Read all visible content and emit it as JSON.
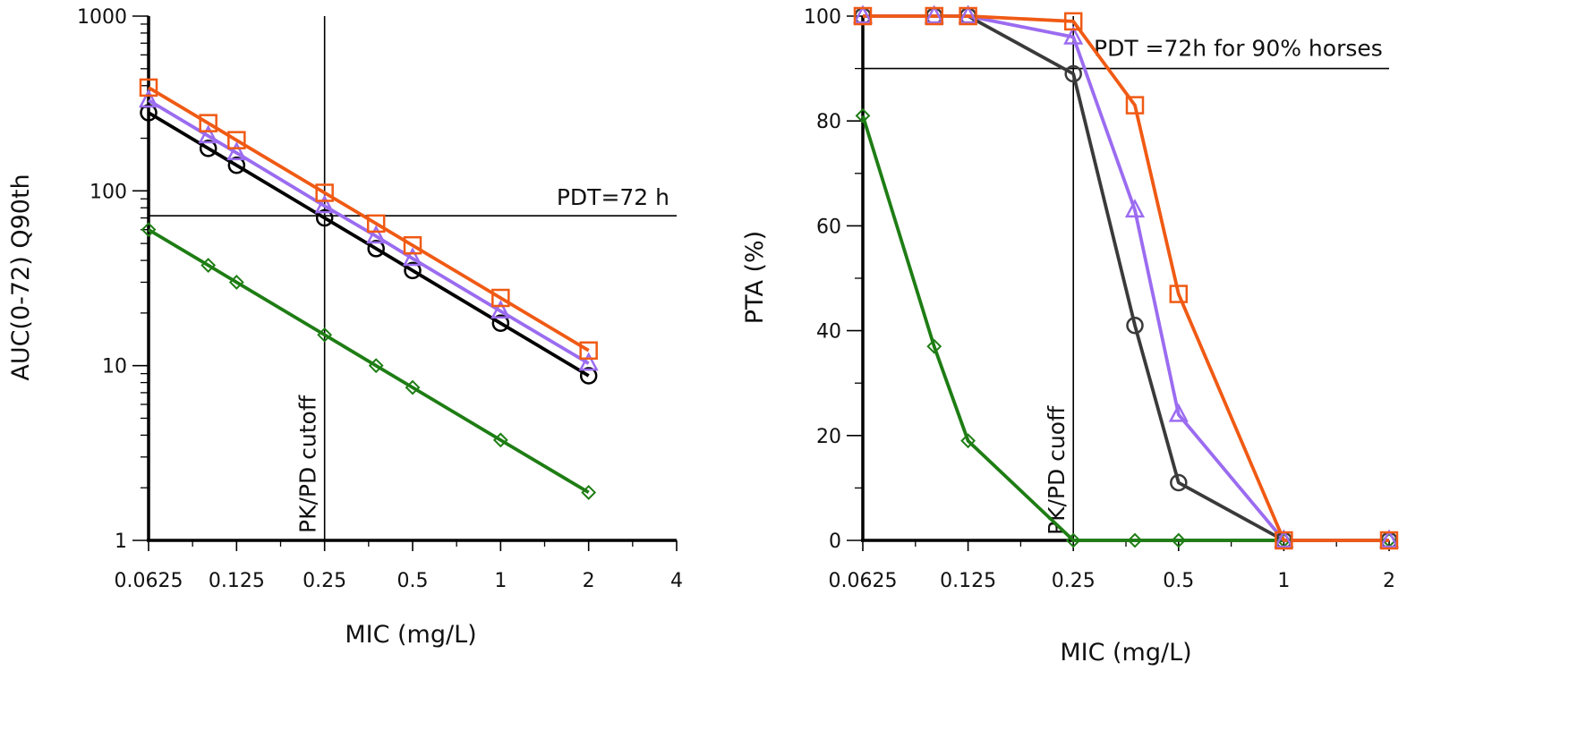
{
  "chart_data": [
    {
      "type": "line",
      "id": "auc",
      "xscale": "log2",
      "yscale": "log10",
      "xlabel": "MIC (mg/L)",
      "ylabel": "AUC(0-72) Q90th",
      "xlim": [
        0.0625,
        4
      ],
      "ylim": [
        1,
        1000
      ],
      "x_ticks": [
        {
          "value": 0.0625,
          "label": "0.0625"
        },
        {
          "value": 0.125,
          "label": "0.125"
        },
        {
          "value": 0.25,
          "label": "0.25"
        },
        {
          "value": 0.5,
          "label": "0.5"
        },
        {
          "value": 1,
          "label": "1"
        },
        {
          "value": 2,
          "label": "2"
        },
        {
          "value": 4,
          "label": "4"
        }
      ],
      "y_ticks": [
        {
          "value": 1,
          "label": "1"
        },
        {
          "value": 10,
          "label": "10"
        },
        {
          "value": 100,
          "label": "100"
        },
        {
          "value": 1000,
          "label": "1000"
        }
      ],
      "series": [
        {
          "name": "green-diamond",
          "color": "#1e7d14",
          "marker": "diamond",
          "x": [
            0.0625,
            0.1,
            0.125,
            0.25,
            0.375,
            0.5,
            1,
            2
          ],
          "y": [
            60,
            37.5,
            30,
            15,
            10,
            7.5,
            3.75,
            1.88
          ]
        },
        {
          "name": "black-circle",
          "color": "#000000",
          "marker": "circle",
          "x": [
            0.0625,
            0.1,
            0.125,
            0.25,
            0.375,
            0.5,
            1,
            2
          ],
          "y": [
            280,
            175,
            140,
            70,
            46.7,
            35,
            17.5,
            8.75
          ]
        },
        {
          "name": "purple-triangle",
          "color": "#9b6cf0",
          "marker": "triangle",
          "x": [
            0.0625,
            0.1,
            0.125,
            0.25,
            0.375,
            0.5,
            1,
            2
          ],
          "y": [
            330,
            206,
            165,
            82,
            55,
            41,
            20.5,
            10.3
          ]
        },
        {
          "name": "orange-square",
          "color": "#f05a14",
          "marker": "square",
          "x": [
            0.0625,
            0.1,
            0.125,
            0.25,
            0.375,
            0.5,
            1,
            2
          ],
          "y": [
            390,
            244,
            195,
            97.5,
            65,
            48.8,
            24.4,
            12.2
          ]
        }
      ],
      "hline": {
        "value": 72,
        "label": "PDT=72 h"
      },
      "vline": {
        "value": 0.25,
        "label": "PK/PD cutoff"
      }
    },
    {
      "type": "line",
      "id": "pta",
      "xscale": "log2",
      "yscale": "linear",
      "xlabel": "MIC (mg/L)",
      "ylabel": "PTA (%)",
      "xlim": [
        0.0625,
        2
      ],
      "ylim": [
        0,
        100
      ],
      "x_ticks": [
        {
          "value": 0.0625,
          "label": "0.0625"
        },
        {
          "value": 0.125,
          "label": "0.125"
        },
        {
          "value": 0.25,
          "label": "0.25"
        },
        {
          "value": 0.5,
          "label": "0.5"
        },
        {
          "value": 1,
          "label": "1"
        },
        {
          "value": 2,
          "label": "2"
        }
      ],
      "y_ticks": [
        {
          "value": 0,
          "label": "0"
        },
        {
          "value": 20,
          "label": "20"
        },
        {
          "value": 40,
          "label": "40"
        },
        {
          "value": 60,
          "label": "60"
        },
        {
          "value": 80,
          "label": "80"
        },
        {
          "value": 100,
          "label": "100"
        }
      ],
      "series": [
        {
          "name": "green-diamond",
          "color": "#1e7d14",
          "marker": "diamond",
          "x": [
            0.0625,
            0.1,
            0.125,
            0.25,
            0.375,
            0.5,
            1,
            2
          ],
          "y": [
            81,
            37,
            19,
            0,
            0,
            0,
            0,
            0
          ]
        },
        {
          "name": "black-circle",
          "color": "#3a3a3a",
          "marker": "circle",
          "x": [
            0.0625,
            0.1,
            0.125,
            0.25,
            0.375,
            0.5,
            1,
            2
          ],
          "y": [
            100,
            100,
            100,
            89,
            41,
            11,
            0,
            0
          ]
        },
        {
          "name": "purple-triangle",
          "color": "#9b6cf0",
          "marker": "triangle",
          "x": [
            0.0625,
            0.1,
            0.125,
            0.25,
            0.375,
            0.5,
            1,
            2
          ],
          "y": [
            100,
            100,
            100,
            96,
            63,
            24,
            0,
            0
          ]
        },
        {
          "name": "orange-square",
          "color": "#f05a14",
          "marker": "square",
          "x": [
            0.0625,
            0.1,
            0.125,
            0.25,
            0.375,
            0.5,
            1,
            2
          ],
          "y": [
            100,
            100,
            100,
            99,
            83,
            47,
            0,
            0
          ]
        }
      ],
      "hline": {
        "value": 90,
        "label": "PDT =72h for 90% horses"
      },
      "vline": {
        "value": 0.25,
        "label": "PK/PD cuoff"
      }
    }
  ]
}
